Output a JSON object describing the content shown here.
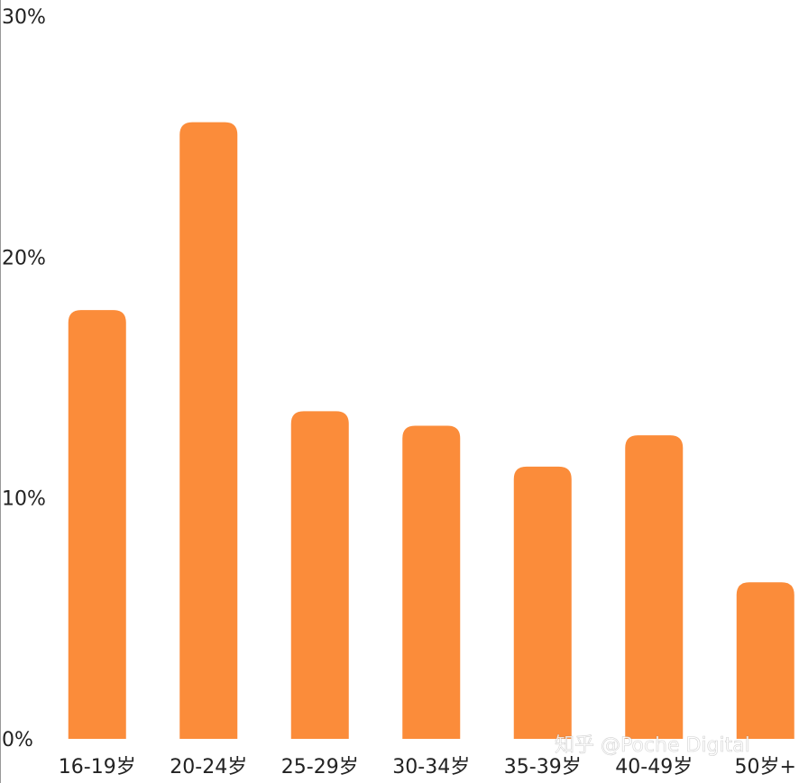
{
  "chart_data": {
    "type": "bar",
    "categories": [
      "16-19岁",
      "20-24岁",
      "25-29岁",
      "30-34岁",
      "35-39岁",
      "40-49岁",
      "50岁+"
    ],
    "values": [
      17.8,
      25.6,
      13.6,
      13.0,
      11.3,
      12.6,
      6.5
    ],
    "color": "#fb8c3a",
    "ylim": [
      0,
      30
    ],
    "yticks": [
      {
        "value": 0,
        "label": "0%"
      },
      {
        "value": 10,
        "label": "10%"
      },
      {
        "value": 20,
        "label": "20%"
      },
      {
        "value": 30,
        "label": "30%"
      }
    ],
    "grid": false,
    "annotation": "知乎 @Poche Digital"
  }
}
